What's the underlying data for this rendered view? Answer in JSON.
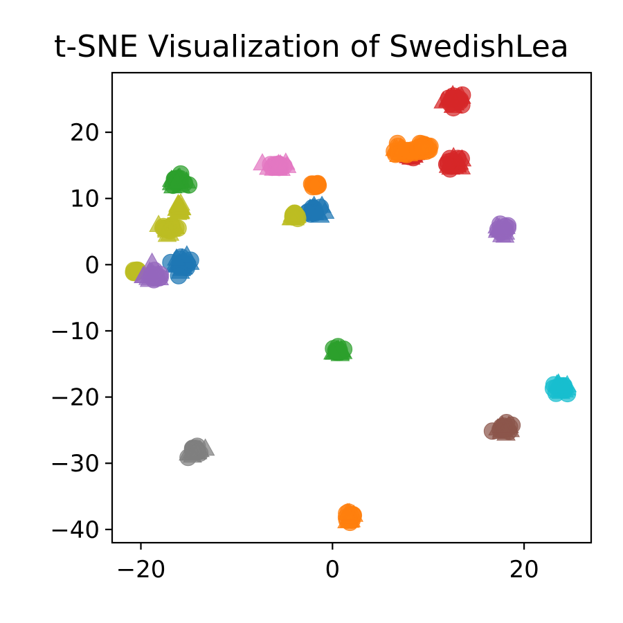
{
  "chart_data": {
    "type": "scatter",
    "title": "t-SNE Visualization of SwedishLea",
    "xlabel": "",
    "ylabel": "",
    "xlim": [
      -23,
      27
    ],
    "ylim": [
      -42,
      29
    ],
    "xticks": [
      -20,
      0,
      20
    ],
    "yticks": [
      20,
      10,
      0,
      -10,
      -20,
      -30,
      -40
    ],
    "xtick_labels": [
      "−20",
      "0",
      "20"
    ],
    "ytick_labels": [
      "20",
      "10",
      "0",
      "−10",
      "−20",
      "−30",
      "−40"
    ],
    "grid": false,
    "legend": false,
    "clusters": [
      {
        "color": "#d62728",
        "center": [
          12.8,
          25.0
        ],
        "spread": [
          1.1,
          0.9
        ],
        "marker": "mixed"
      },
      {
        "color": "#d62728",
        "center": [
          12.8,
          15.2
        ],
        "spread": [
          0.8,
          1.0
        ],
        "marker": "mixed"
      },
      {
        "color": "#d62728",
        "center": [
          8.2,
          16.6
        ],
        "spread": [
          0.6,
          0.4
        ],
        "marker": "mixed"
      },
      {
        "color": "#ff7f0e",
        "center": [
          7.2,
          17.2
        ],
        "spread": [
          1.2,
          0.8
        ],
        "marker": "mixed"
      },
      {
        "color": "#ff7f0e",
        "center": [
          9.6,
          17.6
        ],
        "spread": [
          0.7,
          0.6
        ],
        "marker": "circle"
      },
      {
        "color": "#ff7f0e",
        "center": [
          -1.8,
          12.0
        ],
        "spread": [
          0.3,
          0.3
        ],
        "marker": "circle"
      },
      {
        "color": "#ff7f0e",
        "center": [
          1.8,
          -38.0
        ],
        "spread": [
          0.6,
          1.0
        ],
        "marker": "mixed"
      },
      {
        "color": "#e377c2",
        "center": [
          -5.6,
          15.0
        ],
        "spread": [
          0.9,
          0.6
        ],
        "marker": "mixed"
      },
      {
        "color": "#2ca02c",
        "center": [
          -16.2,
          12.8
        ],
        "spread": [
          0.8,
          0.7
        ],
        "marker": "mixed"
      },
      {
        "color": "#2ca02c",
        "center": [
          0.6,
          -13.0
        ],
        "spread": [
          0.5,
          0.5
        ],
        "marker": "mixed"
      },
      {
        "color": "#1f77b4",
        "center": [
          -2.0,
          8.2
        ],
        "spread": [
          0.8,
          0.8
        ],
        "marker": "mixed"
      },
      {
        "color": "#1f77b4",
        "center": [
          -15.6,
          0.2
        ],
        "spread": [
          0.8,
          1.0
        ],
        "marker": "mixed"
      },
      {
        "color": "#bcbd22",
        "center": [
          -17.0,
          5.6
        ],
        "spread": [
          1.2,
          0.7
        ],
        "marker": "mixed"
      },
      {
        "color": "#bcbd22",
        "center": [
          -16.0,
          8.6
        ],
        "spread": [
          0.3,
          0.6
        ],
        "marker": "triangle"
      },
      {
        "color": "#bcbd22",
        "center": [
          -4.0,
          7.4
        ],
        "spread": [
          0.3,
          0.3
        ],
        "marker": "mixed"
      },
      {
        "color": "#bcbd22",
        "center": [
          -20.5,
          -1.0
        ],
        "spread": [
          0.3,
          0.3
        ],
        "marker": "circle"
      },
      {
        "color": "#9467bd",
        "center": [
          -18.6,
          -1.6
        ],
        "spread": [
          1.0,
          1.1
        ],
        "marker": "mixed"
      },
      {
        "color": "#9467bd",
        "center": [
          17.6,
          5.2
        ],
        "spread": [
          0.8,
          0.8
        ],
        "marker": "mixed"
      },
      {
        "color": "#17becf",
        "center": [
          23.8,
          -18.8
        ],
        "spread": [
          0.9,
          0.8
        ],
        "marker": "mixed"
      },
      {
        "color": "#8c564b",
        "center": [
          18.0,
          -24.8
        ],
        "spread": [
          0.9,
          0.7
        ],
        "marker": "mixed"
      },
      {
        "color": "#7f7f7f",
        "center": [
          -14.2,
          -28.0
        ],
        "spread": [
          0.7,
          0.8
        ],
        "marker": "mixed"
      }
    ]
  }
}
